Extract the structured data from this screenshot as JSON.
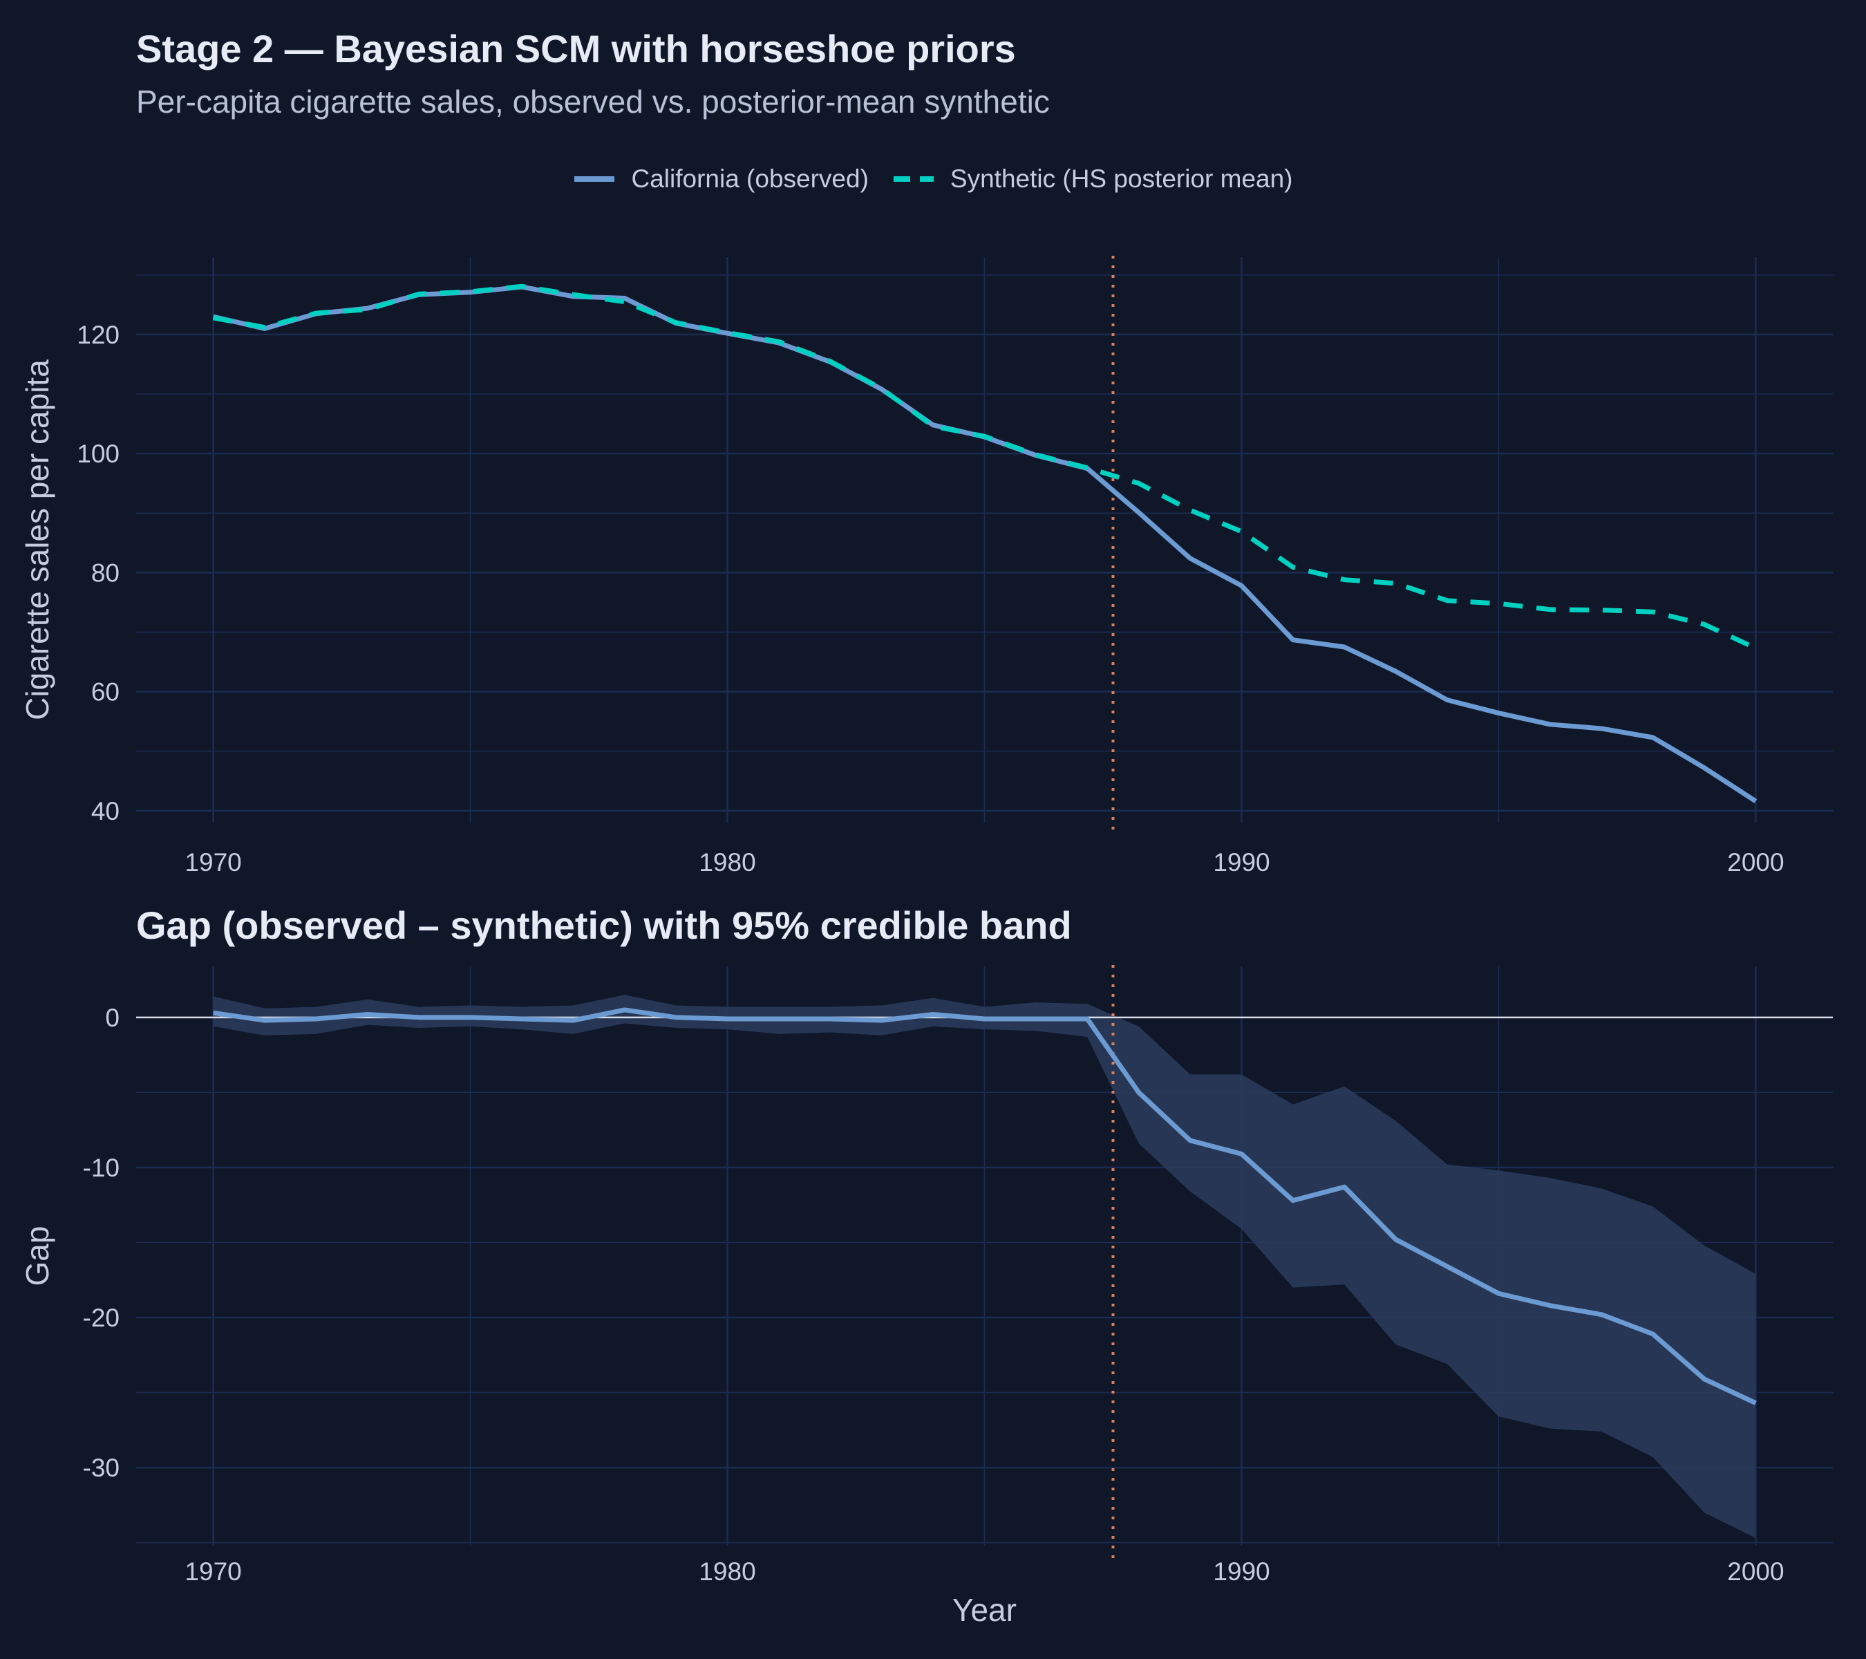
{
  "header": {
    "title": "Stage 2 — Bayesian SCM with horseshoe priors",
    "subtitle": "Per-capita cigarette sales, observed vs. posterior-mean synthetic"
  },
  "legend": {
    "observed_label": "California (observed)",
    "synthetic_label": "Synthetic (HS posterior mean)"
  },
  "colors": {
    "background": "#0f1729",
    "grid": "#1c2b52",
    "observed": "#6b9bd2",
    "synthetic": "#00d1c1",
    "intervention": "#d9825b",
    "band": "#2a3c5c",
    "zero_line": "#d8dde8",
    "tick_text": "#c5cde0",
    "axis_title": "#c5cde0"
  },
  "chart_data": [
    {
      "type": "line",
      "ylabel": "Cigarette sales per capita",
      "xlabel": "",
      "xlim": [
        1968.5,
        2001.5
      ],
      "ylim": [
        38,
        133
      ],
      "x_ticks": [
        1970,
        1980,
        1990,
        2000
      ],
      "y_ticks": [
        40,
        60,
        80,
        100,
        120
      ],
      "grid": true,
      "legend_position": "top-center",
      "intervention_year": 1987.5,
      "x": [
        1970,
        1971,
        1972,
        1973,
        1974,
        1975,
        1976,
        1977,
        1978,
        1979,
        1980,
        1981,
        1982,
        1983,
        1984,
        1985,
        1986,
        1987,
        1988,
        1989,
        1990,
        1991,
        1992,
        1993,
        1994,
        1995,
        1996,
        1997,
        1998,
        1999,
        2000
      ],
      "series": [
        {
          "name": "California (observed)",
          "style": "solid",
          "values": [
            123.0,
            121.0,
            123.5,
            124.4,
            126.7,
            127.1,
            128.0,
            126.4,
            126.1,
            121.9,
            120.2,
            118.6,
            115.4,
            110.8,
            104.8,
            102.8,
            99.7,
            97.5,
            90.1,
            82.4,
            77.8,
            68.7,
            67.5,
            63.4,
            58.6,
            56.4,
            54.5,
            53.8,
            52.3,
            47.2,
            41.6
          ]
        },
        {
          "name": "Synthetic (HS posterior mean)",
          "style": "dashed",
          "values": [
            122.8,
            121.2,
            123.6,
            124.2,
            126.8,
            127.2,
            128.1,
            126.7,
            125.5,
            122.0,
            120.3,
            118.8,
            115.5,
            110.9,
            104.6,
            102.9,
            99.8,
            97.6,
            95.0,
            90.5,
            86.9,
            80.9,
            78.8,
            78.2,
            75.3,
            74.8,
            73.8,
            73.7,
            73.4,
            71.3,
            67.3
          ]
        }
      ]
    },
    {
      "type": "line",
      "title": "Gap (observed – synthetic) with 95% credible band",
      "ylabel": "Gap",
      "xlabel": "Year",
      "xlim": [
        1968.5,
        2001.5
      ],
      "ylim": [
        -35.2,
        3.4
      ],
      "x_ticks": [
        1970,
        1980,
        1990,
        2000
      ],
      "y_ticks": [
        0,
        -10,
        -20,
        -30
      ],
      "grid": true,
      "intervention_year": 1987.5,
      "zero_line": true,
      "x": [
        1970,
        1971,
        1972,
        1973,
        1974,
        1975,
        1976,
        1977,
        1978,
        1979,
        1980,
        1981,
        1982,
        1983,
        1984,
        1985,
        1986,
        1987,
        1988,
        1989,
        1990,
        1991,
        1992,
        1993,
        1994,
        1995,
        1996,
        1997,
        1998,
        1999,
        2000
      ],
      "gap": [
        0.3,
        -0.2,
        -0.1,
        0.2,
        0.0,
        0.0,
        -0.1,
        -0.2,
        0.5,
        0.0,
        -0.1,
        -0.1,
        -0.1,
        -0.2,
        0.2,
        -0.1,
        -0.1,
        -0.1,
        -5.0,
        -8.2,
        -9.1,
        -12.2,
        -11.3,
        -14.8,
        -16.6,
        -18.4,
        -19.2,
        -19.8,
        -21.1,
        -24.1,
        -25.7
      ],
      "band_upper": [
        1.4,
        0.6,
        0.7,
        1.2,
        0.7,
        0.8,
        0.7,
        0.8,
        1.5,
        0.8,
        0.7,
        0.7,
        0.7,
        0.8,
        1.3,
        0.7,
        1.0,
        0.9,
        -0.6,
        -3.8,
        -3.8,
        -5.8,
        -4.6,
        -6.9,
        -9.8,
        -10.2,
        -10.7,
        -11.4,
        -12.6,
        -15.2,
        -17.1
      ],
      "band_lower": [
        -0.6,
        -1.2,
        -1.1,
        -0.5,
        -0.7,
        -0.6,
        -0.8,
        -1.1,
        -0.4,
        -0.7,
        -0.8,
        -1.1,
        -1.0,
        -1.2,
        -0.6,
        -0.8,
        -0.9,
        -1.3,
        -8.4,
        -11.6,
        -14.1,
        -18.0,
        -17.8,
        -21.8,
        -23.1,
        -26.6,
        -27.4,
        -27.6,
        -29.3,
        -33.0,
        -34.7
      ]
    }
  ]
}
